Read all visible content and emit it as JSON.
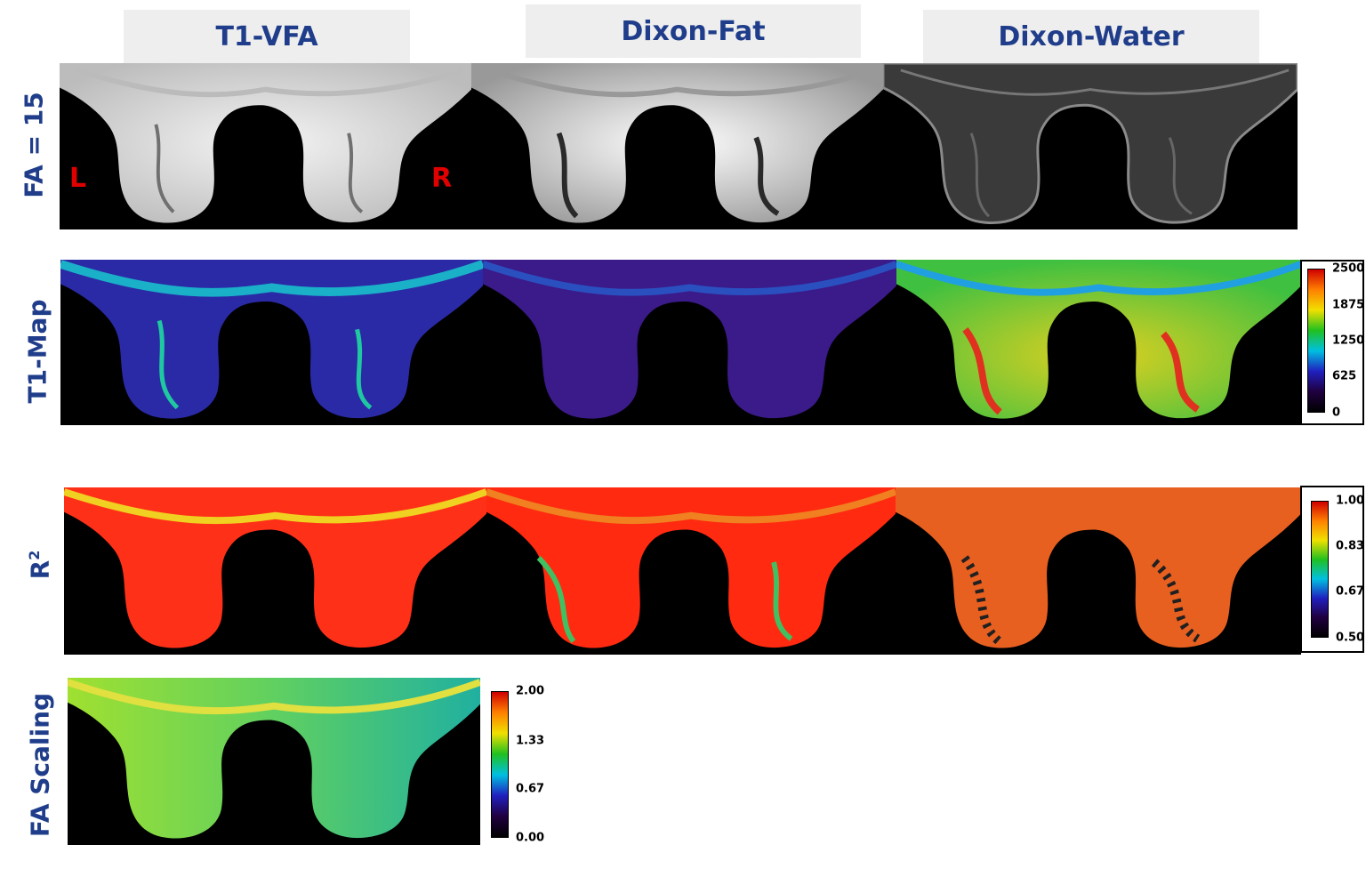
{
  "columns": {
    "t1vfa": "T1-VFA",
    "dixon_fat": "Dixon-Fat",
    "dixon_water": "Dixon-Water"
  },
  "rows": {
    "fa15": "FA = 15",
    "t1map": "T1-Map",
    "r2_base": "R",
    "r2_sup": "2",
    "fa_scaling": "FA Scaling"
  },
  "orientation": {
    "left": "L",
    "right": "R"
  },
  "colorbars": {
    "t1map": {
      "ticks": [
        "2500",
        "1875",
        "1250",
        "625",
        "0"
      ]
    },
    "r2": {
      "ticks": [
        "1.00",
        "0.83",
        "0.67",
        "0.50"
      ]
    },
    "fa_scaling": {
      "ticks": [
        "2.00",
        "1.33",
        "0.67",
        "0.00"
      ]
    }
  },
  "colors": {
    "header_text": "#1f3d8a",
    "header_bg": "#eeeeee",
    "orientation_text": "#e00000"
  }
}
